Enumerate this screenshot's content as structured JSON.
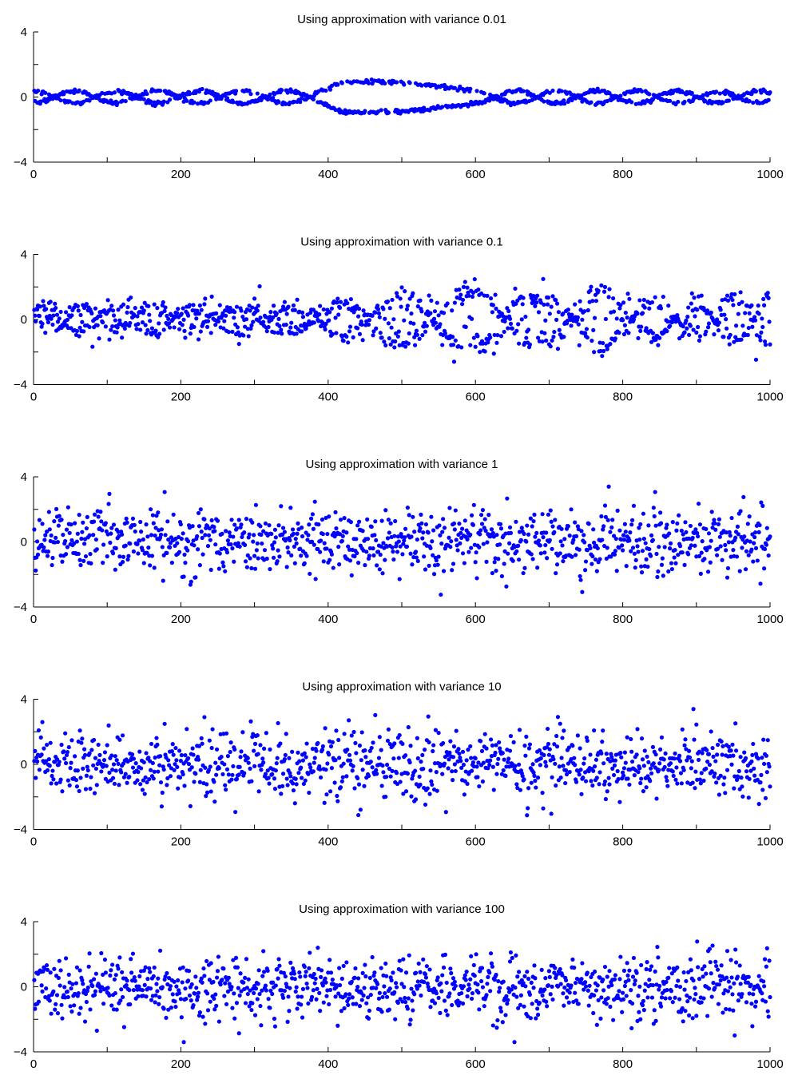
{
  "colors": {
    "marker": "#0000ff",
    "axis": "#000000",
    "background": "#ffffff"
  },
  "chart_data": [
    {
      "type": "scatter",
      "title": "Using approximation with variance 0.01",
      "xlim": [
        0,
        1000
      ],
      "ylim": [
        -4,
        4
      ],
      "xticks": [
        0,
        200,
        400,
        600,
        800,
        1000
      ],
      "yticks": [
        -4,
        0,
        4
      ],
      "n_points": 1000,
      "grid": false,
      "legend": "none",
      "pattern": "braided",
      "amp_profile": [
        [
          0,
          0.35
        ],
        [
          390,
          0.4
        ],
        [
          420,
          0.95
        ],
        [
          600,
          0.95
        ],
        [
          630,
          0.4
        ],
        [
          1000,
          0.35
        ]
      ],
      "periods": [
        [
          0,
          55
        ],
        [
          390,
          60
        ],
        [
          420,
          420
        ],
        [
          620,
          420
        ],
        [
          625,
          55
        ],
        [
          1000,
          55
        ]
      ],
      "noise": 0.06
    },
    {
      "type": "scatter",
      "title": "Using approximation with variance 0.1",
      "xlim": [
        0,
        1000
      ],
      "ylim": [
        -4,
        4
      ],
      "xticks": [
        0,
        200,
        400,
        600,
        800,
        1000
      ],
      "yticks": [
        -4,
        0,
        4
      ],
      "n_points": 1000,
      "grid": false,
      "legend": "none",
      "pattern": "mixed",
      "amp_profile": [
        [
          0,
          0.7
        ],
        [
          400,
          0.8
        ],
        [
          500,
          1.6
        ],
        [
          560,
          1.8
        ],
        [
          620,
          1.7
        ],
        [
          690,
          1.2
        ],
        [
          700,
          2.2
        ],
        [
          760,
          2.4
        ],
        [
          790,
          1.2
        ],
        [
          900,
          1.0
        ],
        [
          1000,
          1.8
        ]
      ],
      "periods": [
        [
          0,
          40
        ],
        [
          480,
          80
        ],
        [
          520,
          100
        ],
        [
          600,
          100
        ],
        [
          690,
          60
        ],
        [
          700,
          180
        ],
        [
          790,
          60
        ],
        [
          1000,
          50
        ]
      ],
      "noise": 0.25
    },
    {
      "type": "scatter",
      "title": "Using approximation with variance 1",
      "xlim": [
        0,
        1000
      ],
      "ylim": [
        -4,
        4
      ],
      "xticks": [
        0,
        200,
        400,
        600,
        800,
        1000
      ],
      "yticks": [
        -4,
        0,
        4
      ],
      "n_points": 1000,
      "grid": false,
      "legend": "none",
      "pattern": "noise",
      "std": 1.0
    },
    {
      "type": "scatter",
      "title": "Using approximation with variance 10",
      "xlim": [
        0,
        1000
      ],
      "ylim": [
        -4,
        4
      ],
      "xticks": [
        0,
        200,
        400,
        600,
        800,
        1000
      ],
      "yticks": [
        -4,
        0,
        4
      ],
      "n_points": 1000,
      "grid": false,
      "legend": "none",
      "pattern": "noise",
      "std": 1.0
    },
    {
      "type": "scatter",
      "title": "Using approximation with variance 100",
      "xlim": [
        0,
        1000
      ],
      "ylim": [
        -4,
        4
      ],
      "xticks": [
        0,
        200,
        400,
        600,
        800,
        1000
      ],
      "yticks": [
        -4,
        0,
        4
      ],
      "n_points": 1000,
      "grid": false,
      "legend": "none",
      "pattern": "noise",
      "std": 1.0
    }
  ]
}
